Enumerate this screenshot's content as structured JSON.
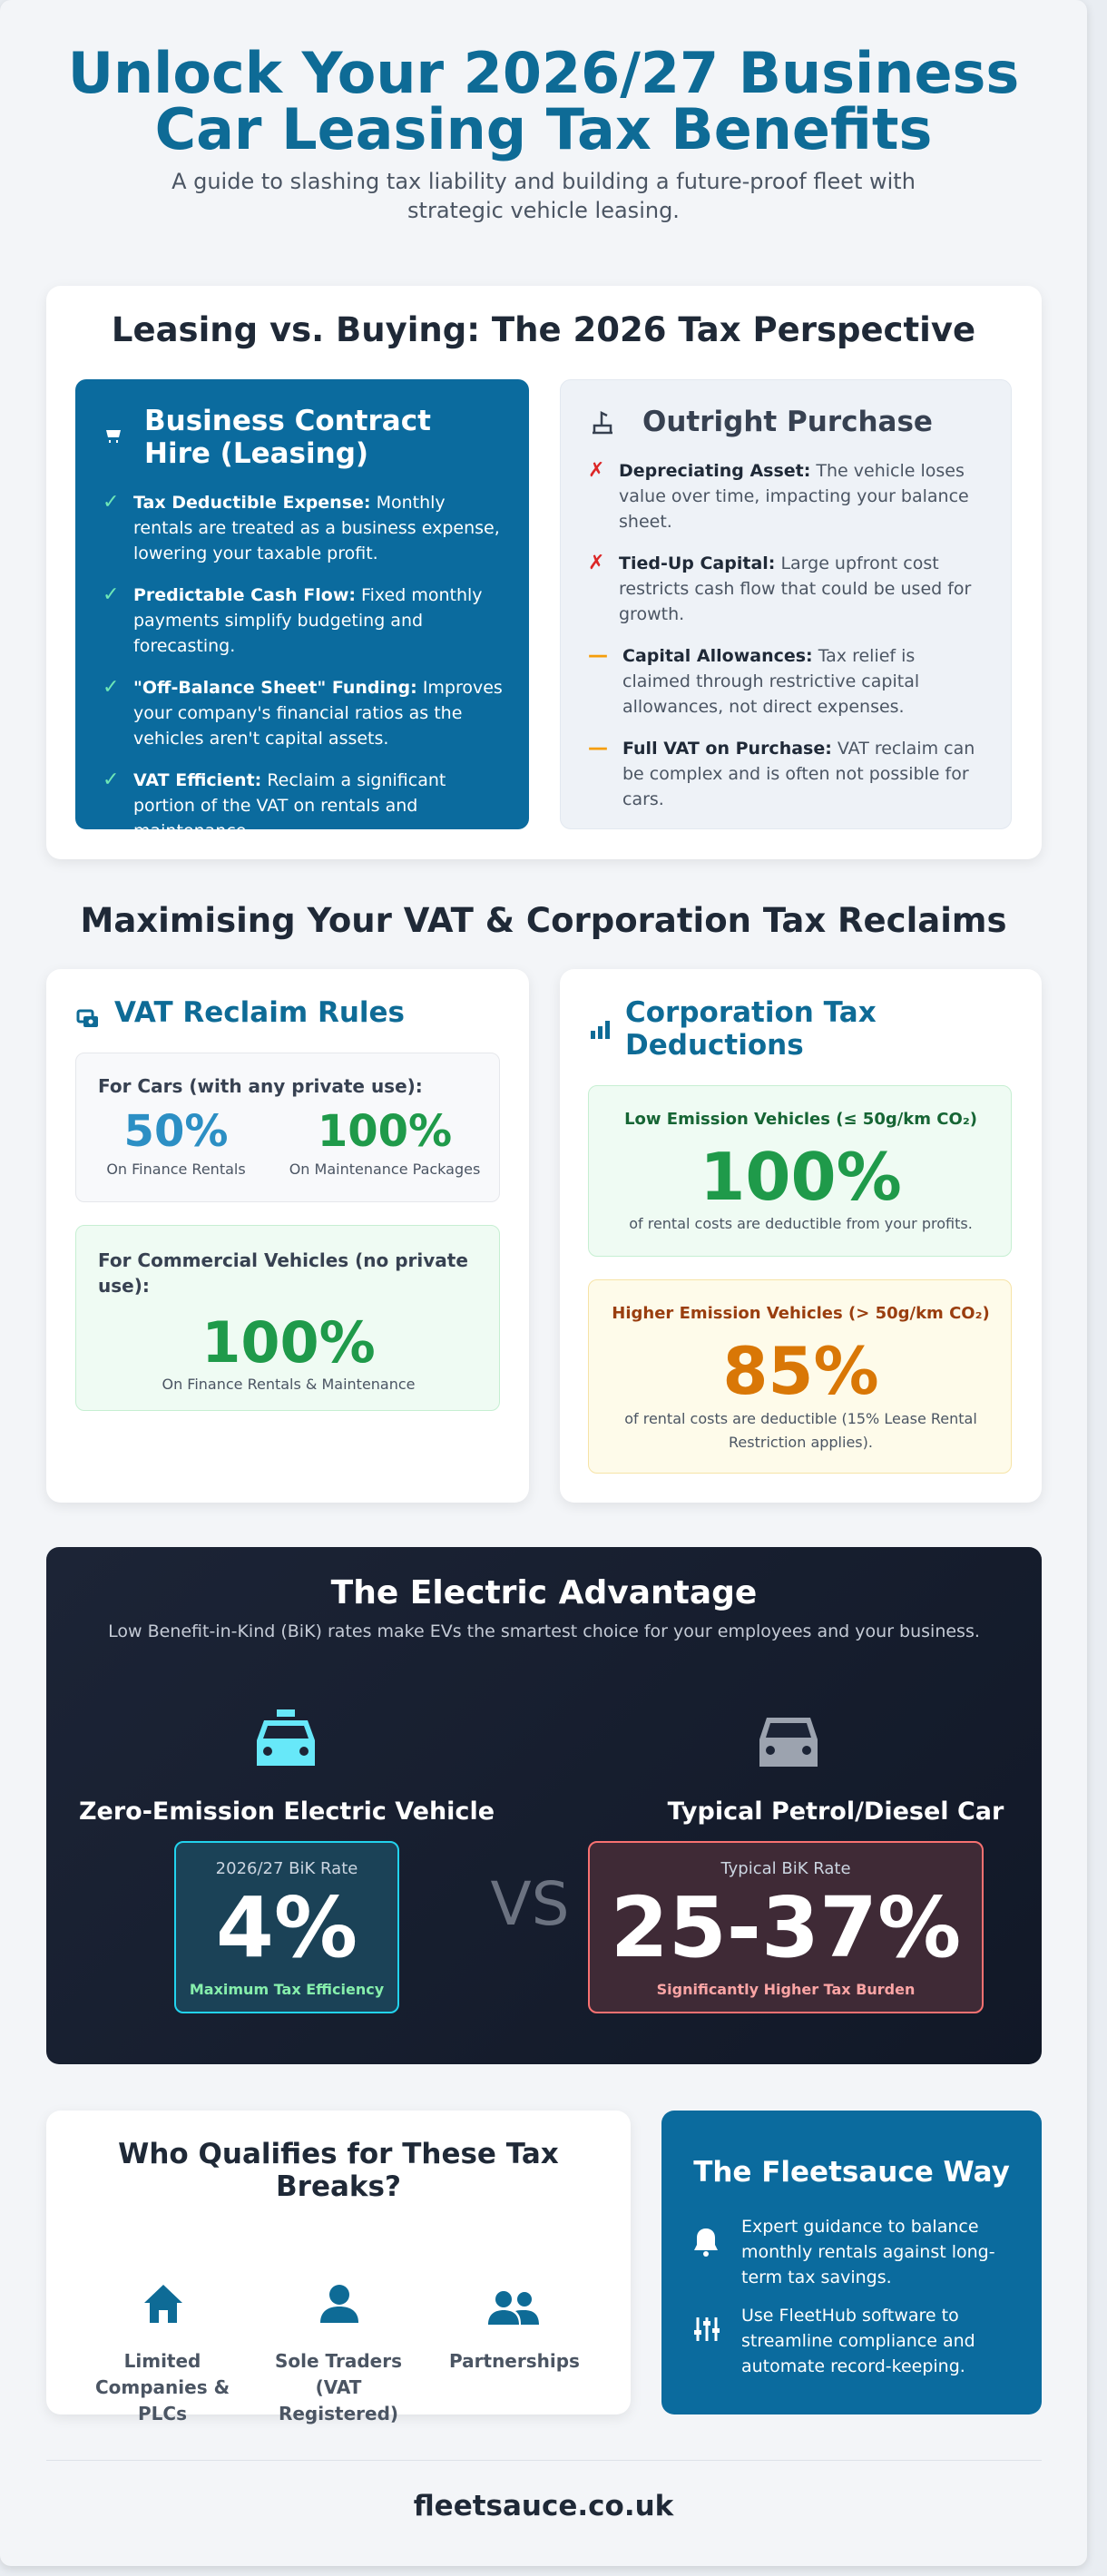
{
  "header": {
    "title_line1": "Unlock Your 2026/27 Business",
    "title_line2": "Car Leasing Tax Benefits",
    "subtitle": "A guide to slashing tax liability and building a future-proof fleet with strategic vehicle leasing."
  },
  "comparison": {
    "heading": "Leasing vs. Buying: The 2026 Tax Perspective",
    "leasing": {
      "title": "Business Contract Hire (Leasing)",
      "items": [
        {
          "label": "Tax Deductible Expense:",
          "text": "Monthly rentals are treated as a business expense, lowering your taxable profit."
        },
        {
          "label": "Predictable Cash Flow:",
          "text": "Fixed monthly payments simplify budgeting and forecasting."
        },
        {
          "label": "\"Off-Balance Sheet\" Funding:",
          "text": "Improves your company's financial ratios as the vehicles aren't capital assets."
        },
        {
          "label": "VAT Efficient:",
          "text": "Reclaim a significant portion of the VAT on rentals and maintenance."
        }
      ]
    },
    "purchase": {
      "title": "Outright Purchase",
      "items": [
        {
          "label": "Depreciating Asset:",
          "text": "The vehicle loses value over time, impacting your balance sheet."
        },
        {
          "label": "Tied-Up Capital:",
          "text": "Large upfront cost restricts cash flow that could be used for growth."
        },
        {
          "label": "Capital Allowances:",
          "text": "Tax relief is claimed through restrictive capital allowances, not direct expenses."
        },
        {
          "label": "Full VAT on Purchase:",
          "text": "VAT reclaim can be complex and is often not possible for cars."
        }
      ]
    }
  },
  "tax": {
    "heading": "Maximising Your VAT & Corporation Tax Reclaims",
    "vat": {
      "title": "VAT Reclaim Rules",
      "cars": {
        "title": "For Cars (with any private use):",
        "stats": [
          {
            "value": "50%",
            "caption": "On Finance Rentals"
          },
          {
            "value": "100%",
            "caption": "On Maintenance Packages"
          }
        ]
      },
      "commercial": {
        "title": "For Commercial Vehicles (no private use):",
        "value": "100%",
        "caption": "On Finance Rentals & Maintenance"
      }
    },
    "corporation": {
      "title": "Corporation Tax Deductions",
      "low": {
        "title": "Low Emission Vehicles (≤ 50g/km CO₂)",
        "value": "100%",
        "caption": "of rental costs are deductible from your profits."
      },
      "high": {
        "title": "Higher Emission Vehicles (> 50g/km CO₂)",
        "value": "85%",
        "caption": "of rental costs are deductible (15% Lease Rental Restriction applies)."
      }
    }
  },
  "electric": {
    "title": "The Electric Advantage",
    "subtitle": "Low Benefit-in-Kind (BiK) rates make EVs the smartest choice for your employees and your business.",
    "ev": {
      "name": "Zero-Emission Electric Vehicle",
      "rate_label": "2026/27 BiK Rate",
      "rate": "4%",
      "note": "Maximum Tax Efficiency"
    },
    "vs": "VS",
    "ice": {
      "name": "Typical Petrol/Diesel Car",
      "rate_label": "Typical BiK Rate",
      "rate": "25-37%",
      "note": "Significantly Higher Tax Burden"
    }
  },
  "qualifies": {
    "title": "Who Qualifies for These Tax Breaks?",
    "items": [
      "Limited Companies & PLCs",
      "Sole Traders (VAT Registered)",
      "Partnerships"
    ]
  },
  "fleetsauce": {
    "title": "The Fleetsauce Way",
    "points": [
      "Expert guidance to balance monthly rentals against long-term tax savings.",
      "Use FleetHub software to streamline compliance and automate record-keeping."
    ]
  },
  "footer": "fleetsauce.co.uk"
}
